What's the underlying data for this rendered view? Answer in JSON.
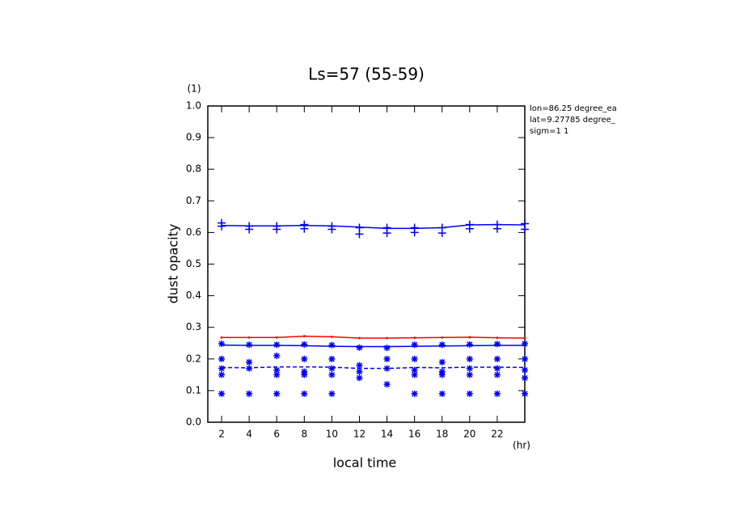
{
  "chart_data": {
    "type": "line",
    "title": "Ls=57 (55-59)",
    "y_label": "dust opacity",
    "y_unit": "(1)",
    "x_label": "local time",
    "x_unit": "(hr)",
    "annotations": [
      "lon=86.25 degree_ea",
      "lat=9.27785 degree_",
      "sigm=1 1"
    ],
    "x": [
      2,
      4,
      6,
      8,
      10,
      12,
      14,
      16,
      18,
      20,
      22,
      24
    ],
    "xlim": [
      1,
      24
    ],
    "xticks": [
      2,
      4,
      6,
      8,
      10,
      12,
      14,
      16,
      18,
      20,
      22
    ],
    "ylim": [
      0,
      1
    ],
    "yticks": [
      {
        "value": 0,
        "label": "0.0"
      },
      0.1,
      0.2,
      0.3,
      0.4,
      0.5,
      0.6,
      0.7,
      0.8,
      0.9,
      {
        "value": 1,
        "label": "1.0"
      }
    ],
    "series": [
      {
        "color": "#ff0000",
        "style": "solid",
        "marker": "dot",
        "values": [
          0.268,
          0.268,
          0.268,
          0.272,
          0.27,
          0.266,
          0.266,
          0.267,
          0.268,
          0.269,
          0.267,
          0.266
        ]
      },
      {
        "color": "#0000ff",
        "style": "solid",
        "marker": "none",
        "values": [
          0.622,
          0.621,
          0.621,
          0.622,
          0.621,
          0.617,
          0.613,
          0.613,
          0.615,
          0.624,
          0.625,
          0.624
        ]
      },
      {
        "color": "#0000ff",
        "style": "solid",
        "marker": "none",
        "values": [
          0.244,
          0.243,
          0.243,
          0.242,
          0.24,
          0.239,
          0.239,
          0.24,
          0.241,
          0.242,
          0.243,
          0.243
        ]
      },
      {
        "color": "#0000ff",
        "style": "dashed",
        "marker": "none",
        "values": [
          0.173,
          0.172,
          0.175,
          0.175,
          0.174,
          0.17,
          0.17,
          0.173,
          0.172,
          0.174,
          0.174,
          0.173
        ]
      },
      {
        "color": "#0000ff",
        "style": "none",
        "marker": "plus",
        "values": [
          0.63,
          0.62,
          0.62,
          0.625,
          0.62,
          0.615,
          0.615,
          0.615,
          0.615,
          0.625,
          0.625,
          0.628
        ]
      },
      {
        "color": "#0000ff",
        "style": "none",
        "marker": "plus",
        "values": [
          0.62,
          0.61,
          0.61,
          0.612,
          0.61,
          0.595,
          0.598,
          0.6,
          0.598,
          0.612,
          0.612,
          0.61
        ]
      },
      {
        "color": "#0000ff",
        "style": "none",
        "marker": "star",
        "values": [
          0.248,
          0.245,
          0.245,
          0.246,
          0.244,
          0.236,
          0.235,
          0.245,
          0.245,
          0.246,
          0.247,
          0.248
        ]
      },
      {
        "color": "#0000ff",
        "style": "none",
        "marker": "star",
        "values": [
          0.2,
          0.19,
          0.21,
          0.2,
          0.2,
          0.18,
          0.2,
          0.2,
          0.19,
          0.2,
          0.2,
          0.2
        ]
      },
      {
        "color": "#0000ff",
        "style": "none",
        "marker": "star",
        "values": [
          0.17,
          0.17,
          0.165,
          0.16,
          0.17,
          0.16,
          0.17,
          0.165,
          0.16,
          0.17,
          0.17,
          0.165
        ]
      },
      {
        "color": "#0000ff",
        "style": "none",
        "marker": "star",
        "values": [
          0.15,
          null,
          0.15,
          0.15,
          0.15,
          0.14,
          0.12,
          0.15,
          0.15,
          0.15,
          0.15,
          0.14
        ]
      },
      {
        "color": "#0000ff",
        "style": "none",
        "marker": "star",
        "values": [
          0.09,
          0.09,
          0.09,
          0.09,
          0.09,
          null,
          null,
          0.09,
          0.09,
          0.09,
          0.09,
          0.09
        ]
      }
    ]
  }
}
